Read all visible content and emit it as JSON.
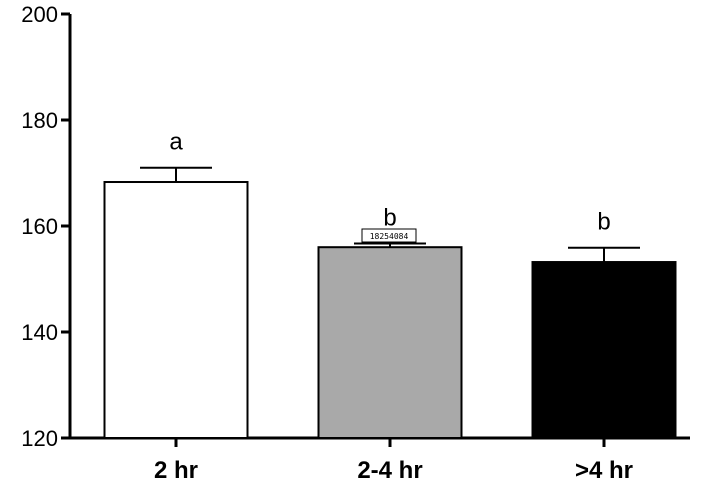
{
  "chart_data": {
    "type": "bar",
    "categories": [
      "2 hr",
      "2-4 hr",
      ">4 hr"
    ],
    "values": [
      168.3,
      156.0,
      153.2
    ],
    "error_bars": [
      2.7,
      0.7,
      2.7
    ],
    "annotations": [
      "a",
      "b",
      "b"
    ],
    "colors": [
      "#ffffff",
      "#a9a9a9",
      "#000000"
    ],
    "title": "",
    "xlabel": "",
    "ylabel": "",
    "ylim": [
      120,
      200
    ],
    "yticks": [
      120,
      140,
      160,
      180,
      200
    ],
    "grid": false
  },
  "stamp": {
    "text": "18254084"
  }
}
